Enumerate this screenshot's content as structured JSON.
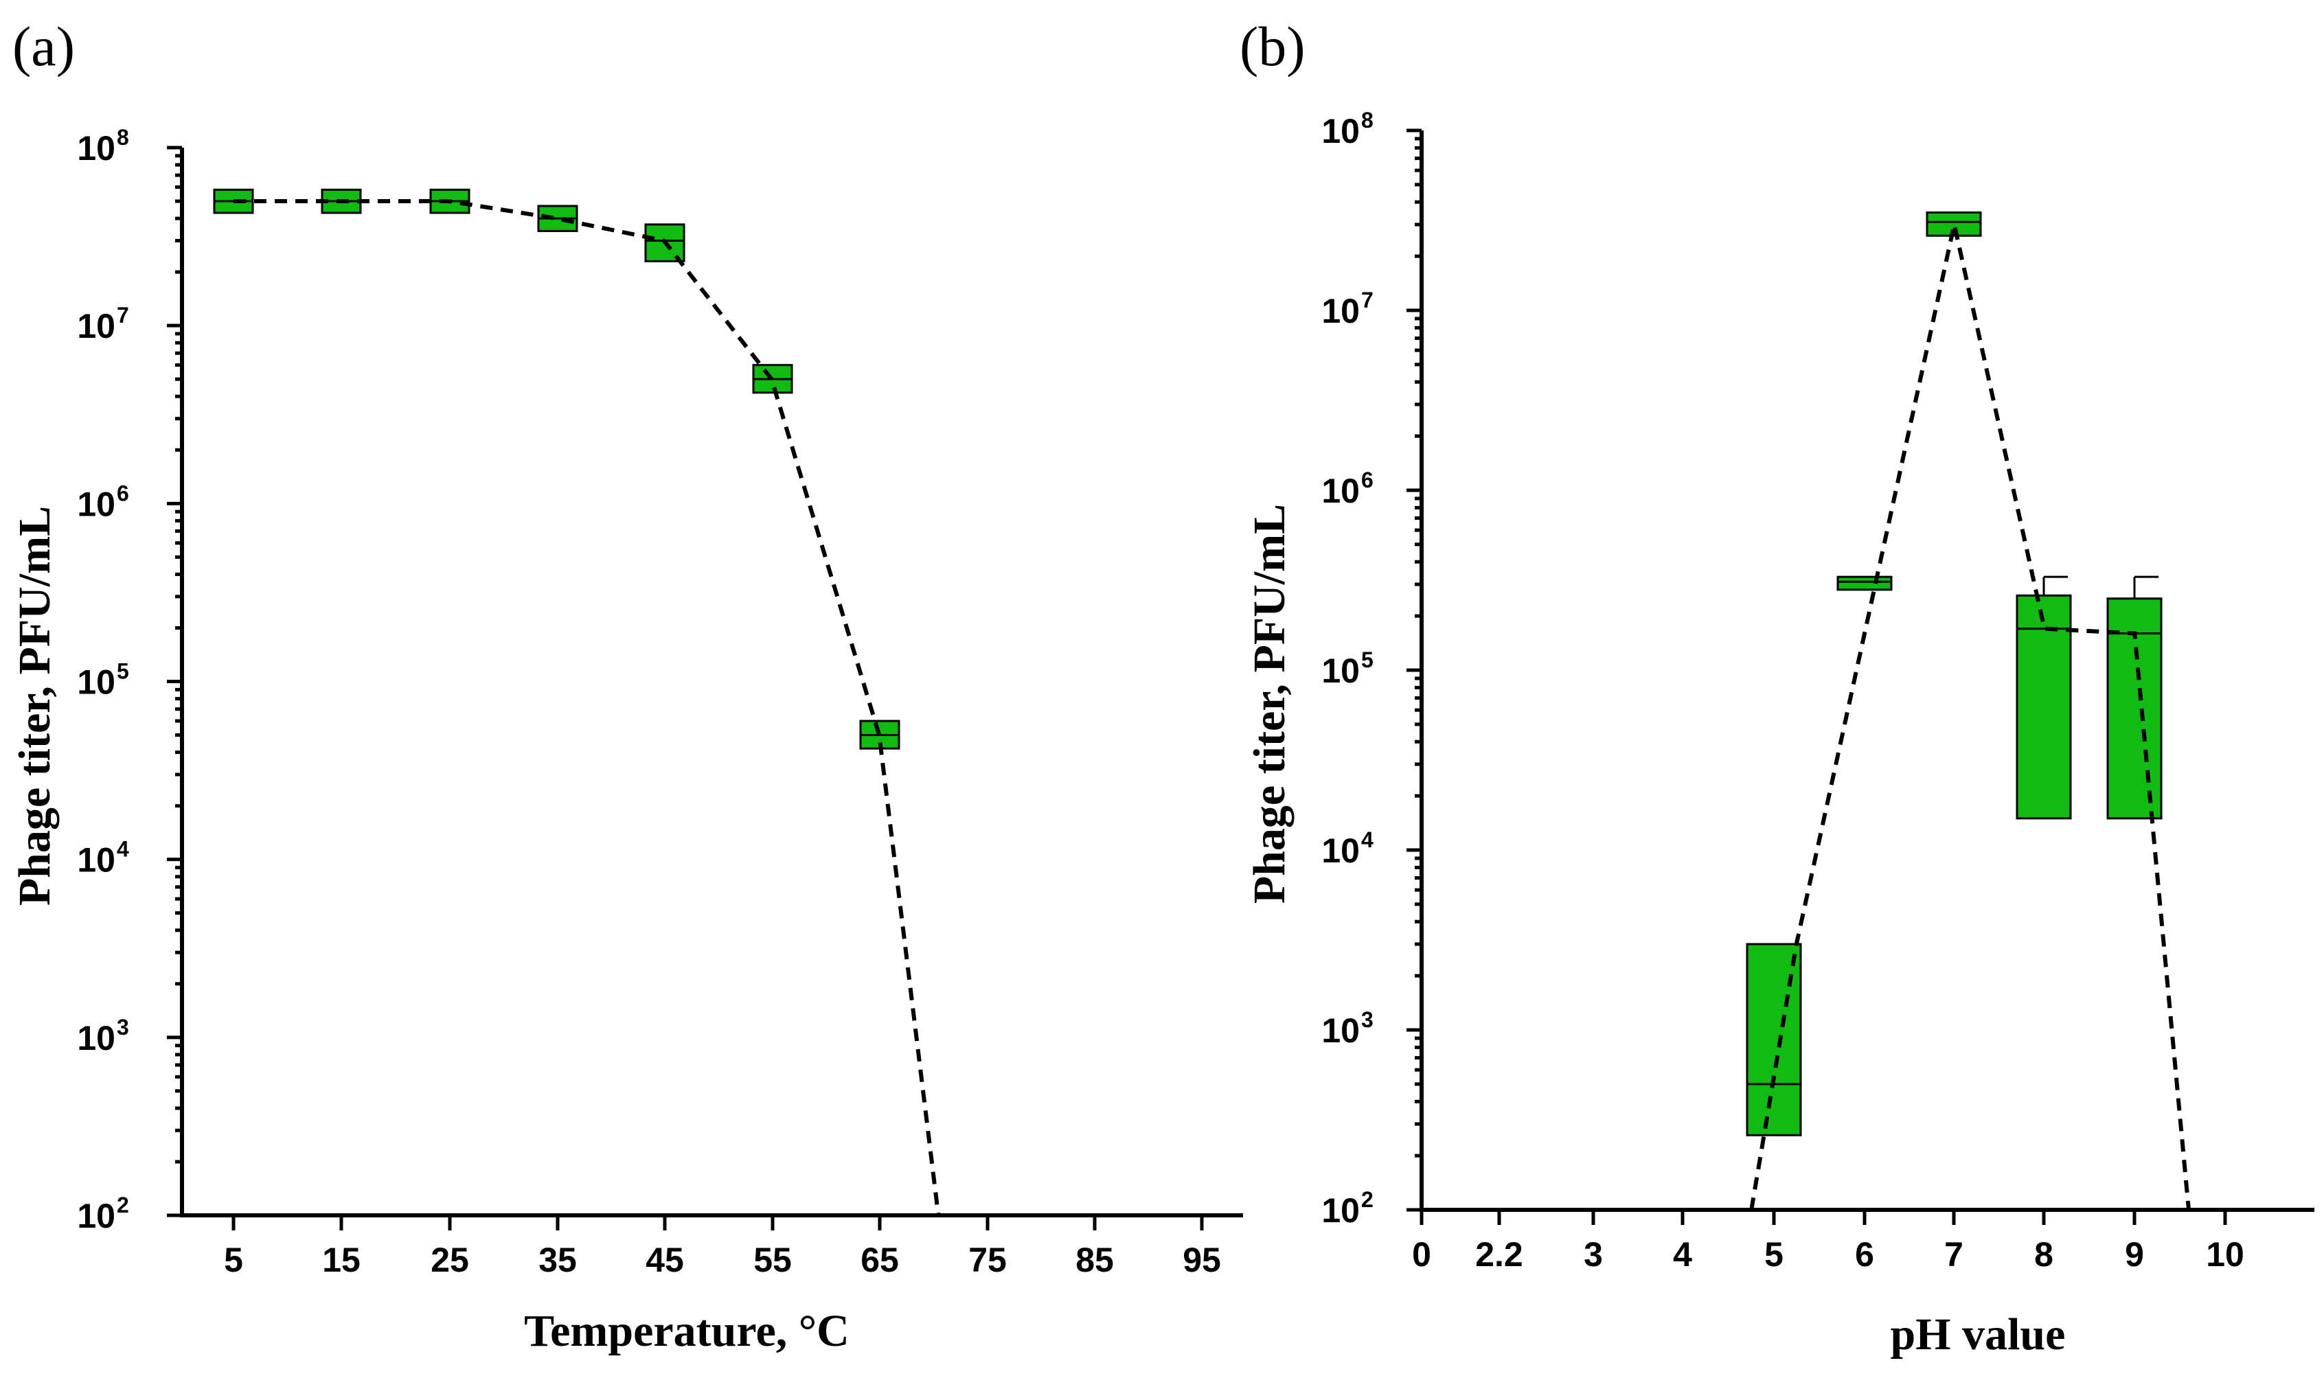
{
  "colors": {
    "box_fill": "#11bb11",
    "box_stroke": "#000000",
    "line": "#000000"
  },
  "chart_data": [
    {
      "panel_label": "(a)",
      "type": "box",
      "xlabel": "Temperature, °C",
      "ylabel": "Phage titer, PFU/mL",
      "y_scale": "log",
      "ylim": [
        100,
        100000000
      ],
      "y_tick_exponents": [
        "2",
        "3",
        "4",
        "5",
        "6",
        "7",
        "8"
      ],
      "y_tick_base": "10",
      "categories": [
        "5",
        "15",
        "25",
        "35",
        "45",
        "55",
        "65",
        "75",
        "85",
        "95"
      ],
      "boxes": [
        {
          "x": "5",
          "low": 43000000,
          "median": 50000000,
          "high": 58000000
        },
        {
          "x": "15",
          "low": 43000000,
          "median": 50000000,
          "high": 58000000
        },
        {
          "x": "25",
          "low": 43000000,
          "median": 50000000,
          "high": 58000000
        },
        {
          "x": "35",
          "low": 34000000,
          "median": 40000000,
          "high": 47000000
        },
        {
          "x": "45",
          "low": 23000000,
          "median": 30000000,
          "high": 37000000
        },
        {
          "x": "55",
          "low": 4200000,
          "median": 5000000,
          "high": 6000000
        },
        {
          "x": "65",
          "low": 42000,
          "median": 50000,
          "high": 60000
        }
      ],
      "trend_line": [
        {
          "x": 5,
          "y": 50000000
        },
        {
          "x": 15,
          "y": 50000000
        },
        {
          "x": 25,
          "y": 50000000
        },
        {
          "x": 35,
          "y": 40000000
        },
        {
          "x": 45,
          "y": 30000000
        },
        {
          "x": 55,
          "y": 5000000
        },
        {
          "x": 65,
          "y": 50000
        },
        {
          "x": 70.5,
          "y": 100
        }
      ]
    },
    {
      "panel_label": "(b)",
      "type": "box",
      "xlabel": "pH value",
      "ylabel": "Phage titer, PFU/mL",
      "y_scale": "log",
      "ylim": [
        100,
        100000000
      ],
      "y_tick_exponents": [
        "2",
        "3",
        "4",
        "5",
        "6",
        "7",
        "8"
      ],
      "y_tick_base": "10",
      "categories": [
        "0",
        "2.2",
        "3",
        "4",
        "5",
        "6",
        "7",
        "8",
        "9",
        "10"
      ],
      "boxes": [
        {
          "x": "5",
          "low": 260,
          "median": 500,
          "high": 3000
        },
        {
          "x": "6",
          "low": 280000,
          "median": 310000,
          "high": 330000
        },
        {
          "x": "7",
          "low": 26000000,
          "median": 31000000,
          "high": 35000000
        },
        {
          "x": "8",
          "low": 15000,
          "median": 170000,
          "high": 260000,
          "whisker_high": 330000
        },
        {
          "x": "9",
          "low": 15000,
          "median": 160000,
          "high": 250000,
          "whisker_high": 330000
        }
      ],
      "trend_line": [
        {
          "x": 4.75,
          "y": 100
        },
        {
          "x": 5.25,
          "y": 3000
        },
        {
          "x": 7,
          "y": 30000000
        },
        {
          "x": 8,
          "y": 170000
        },
        {
          "x": 9,
          "y": 160000
        },
        {
          "x": 9.6,
          "y": 100
        }
      ]
    }
  ]
}
